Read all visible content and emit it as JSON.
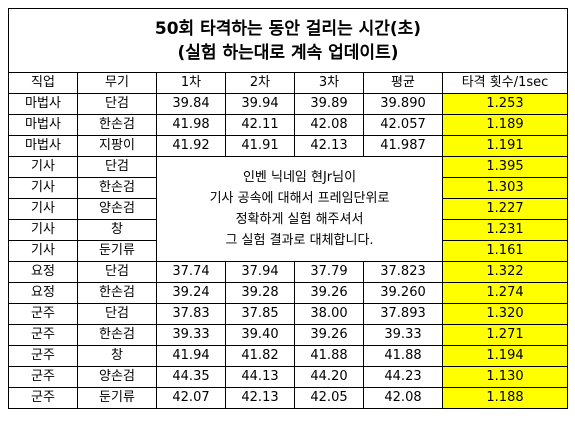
{
  "title_line1": "50회 타격하는 동안 걸리는 시간(초)",
  "title_line2": "(실험 하는대로 계속 업데이트)",
  "headers": [
    "직업",
    "무기",
    "1차",
    "2차",
    "3차",
    "평균",
    "타격 횟수/1sec"
  ],
  "rows": [
    {
      "job": "마법사",
      "weapon": "단검",
      "v1": "39.84",
      "v2": "39.94",
      "v3": "39.89",
      "avg": "39.890",
      "rate": "1.253"
    },
    {
      "job": "마법사",
      "weapon": "한손검",
      "v1": "41.98",
      "v2": "42.11",
      "v3": "42.08",
      "avg": "42.057",
      "rate": "1.189"
    },
    {
      "job": "마법사",
      "weapon": "지팡이",
      "v1": "41.92",
      "v2": "41.91",
      "v3": "42.13",
      "avg": "41.987",
      "rate": "1.191"
    },
    {
      "job": "기사",
      "weapon": "단검",
      "rate": "1.395"
    },
    {
      "job": "기사",
      "weapon": "한손검",
      "rate": "1.303"
    },
    {
      "job": "기사",
      "weapon": "양손검",
      "rate": "1.227"
    },
    {
      "job": "기사",
      "weapon": "창",
      "rate": "1.231"
    },
    {
      "job": "기사",
      "weapon": "둔기류",
      "rate": "1.161"
    },
    {
      "job": "요정",
      "weapon": "단검",
      "v1": "37.74",
      "v2": "37.94",
      "v3": "37.79",
      "avg": "37.823",
      "rate": "1.322"
    },
    {
      "job": "요정",
      "weapon": "한손검",
      "v1": "39.24",
      "v2": "39.28",
      "v3": "39.26",
      "avg": "39.260",
      "rate": "1.274"
    },
    {
      "job": "군주",
      "weapon": "단검",
      "v1": "37.83",
      "v2": "37.85",
      "v3": "38.00",
      "avg": "37.893",
      "rate": "1.320"
    },
    {
      "job": "군주",
      "weapon": "한손검",
      "v1": "39.33",
      "v2": "39.40",
      "v3": "39.26",
      "avg": "39.33",
      "rate": "1.271"
    },
    {
      "job": "군주",
      "weapon": "창",
      "v1": "41.94",
      "v2": "41.82",
      "v3": "41.88",
      "avg": "41.88",
      "rate": "1.194"
    },
    {
      "job": "군주",
      "weapon": "양손검",
      "v1": "44.35",
      "v2": "44.13",
      "v3": "44.20",
      "avg": "44.23",
      "rate": "1.130"
    },
    {
      "job": "군주",
      "weapon": "둔기류",
      "v1": "42.07",
      "v2": "42.13",
      "v3": "42.05",
      "avg": "42.08",
      "rate": "1.188"
    }
  ],
  "note_lines": [
    "인벤 닉네임 현Jr님이",
    "기사 공속에 대해서 프레임단위로",
    "정확하게 실험 해주셔서",
    "그 실험 결과로 대체합니다."
  ],
  "colors": {
    "highlight": "#ffff00",
    "border": "#000000"
  }
}
